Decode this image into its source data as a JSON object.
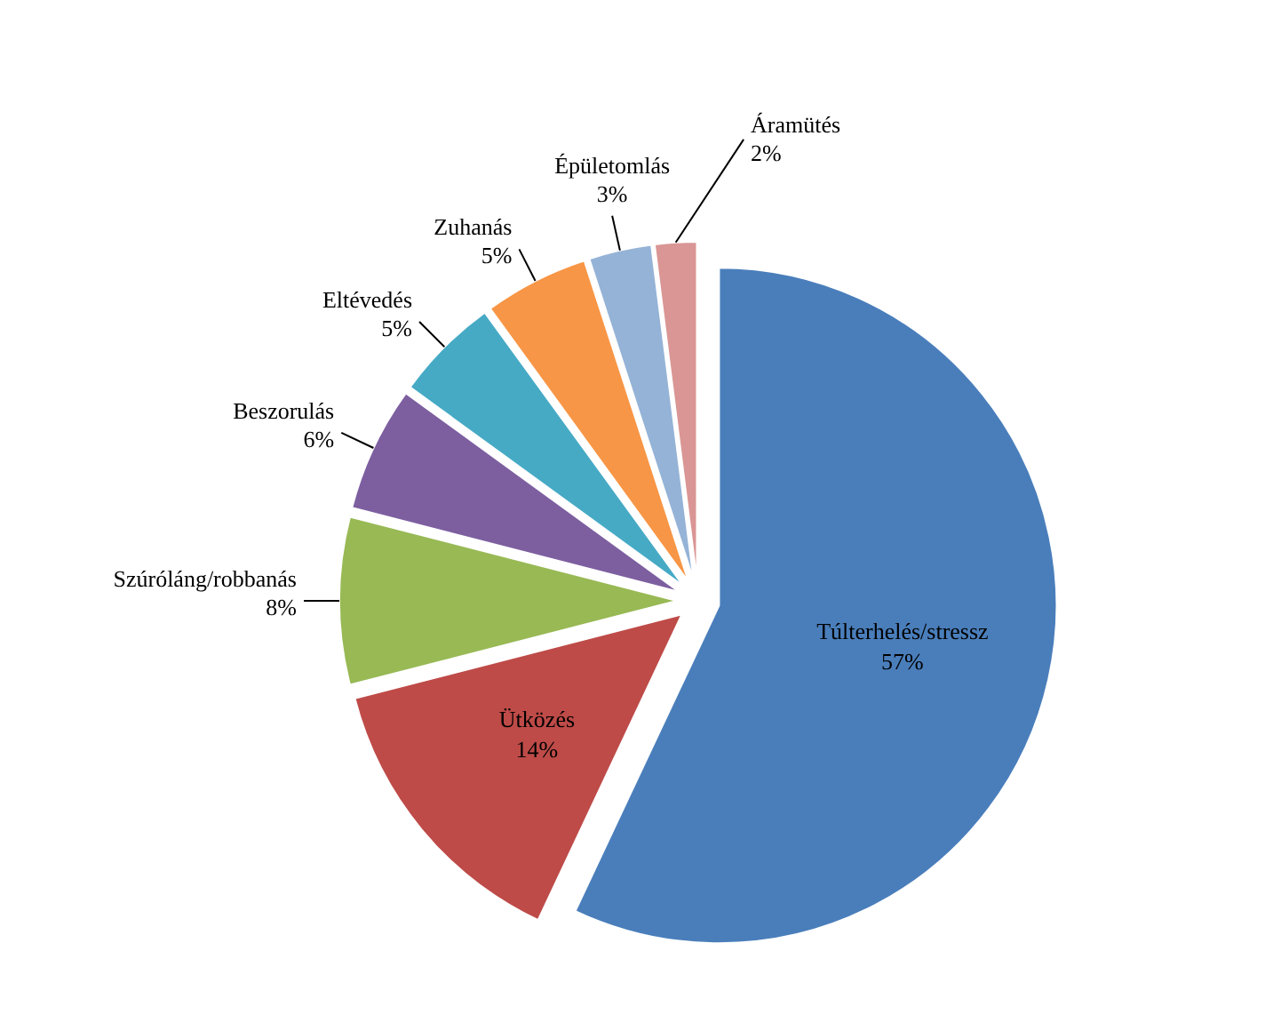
{
  "chart_data": {
    "type": "pie",
    "categories": [
      "Túlterhelés/stressz",
      "Ütközés",
      "Szúróláng/robbanás",
      "Beszorulás",
      "Eltévedés",
      "Zuhanás",
      "Épületomlás",
      "Áramütés"
    ],
    "values": [
      57,
      14,
      8,
      6,
      5,
      5,
      3,
      2
    ],
    "value_labels": [
      "57%",
      "14%",
      "8%",
      "6%",
      "5%",
      "5%",
      "3%",
      "2%"
    ],
    "colors": [
      "#4a7ebb",
      "#be4b48",
      "#98b954",
      "#7d5fa0",
      "#46aac5",
      "#f79646",
      "#95b3d7",
      "#d99694"
    ]
  }
}
